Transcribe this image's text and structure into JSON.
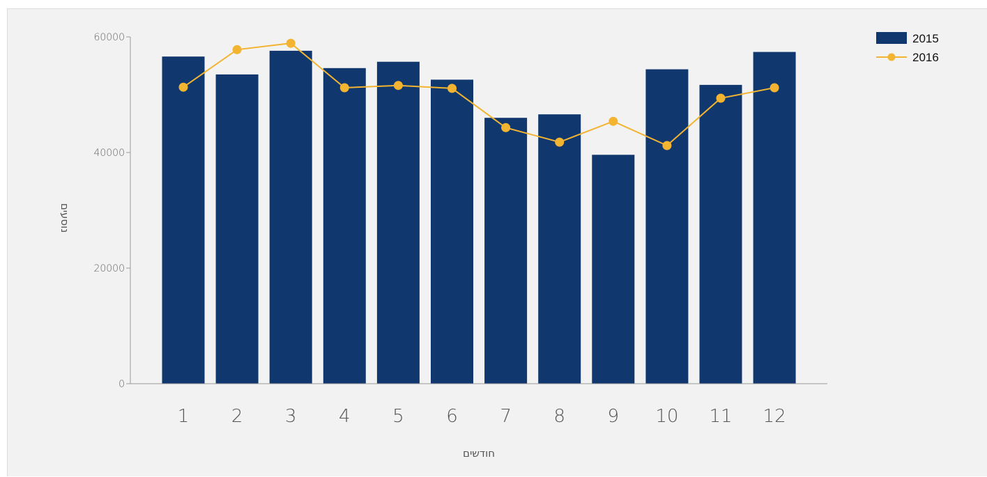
{
  "chart_data": {
    "type": "bar",
    "categories": [
      "1",
      "2",
      "3",
      "4",
      "5",
      "6",
      "7",
      "8",
      "9",
      "10",
      "11",
      "12"
    ],
    "series": [
      {
        "name": "2015",
        "type": "bar",
        "color": "#10386f",
        "values": [
          56600,
          53500,
          57600,
          54600,
          55700,
          52600,
          46000,
          46600,
          39600,
          54400,
          51700,
          57400
        ]
      },
      {
        "name": "2016",
        "type": "line",
        "color": "#f2b431",
        "values": [
          51300,
          57800,
          58900,
          51200,
          51600,
          51100,
          44300,
          41800,
          45400,
          41200,
          49400,
          51200
        ]
      }
    ],
    "title": "",
    "xlabel": "חודשים",
    "ylabel": "נוסעים",
    "ylim": [
      0,
      60000
    ],
    "yticks": [
      "0",
      "20000",
      "40000",
      "60000"
    ],
    "grid": false,
    "legend_position": "top-right"
  }
}
